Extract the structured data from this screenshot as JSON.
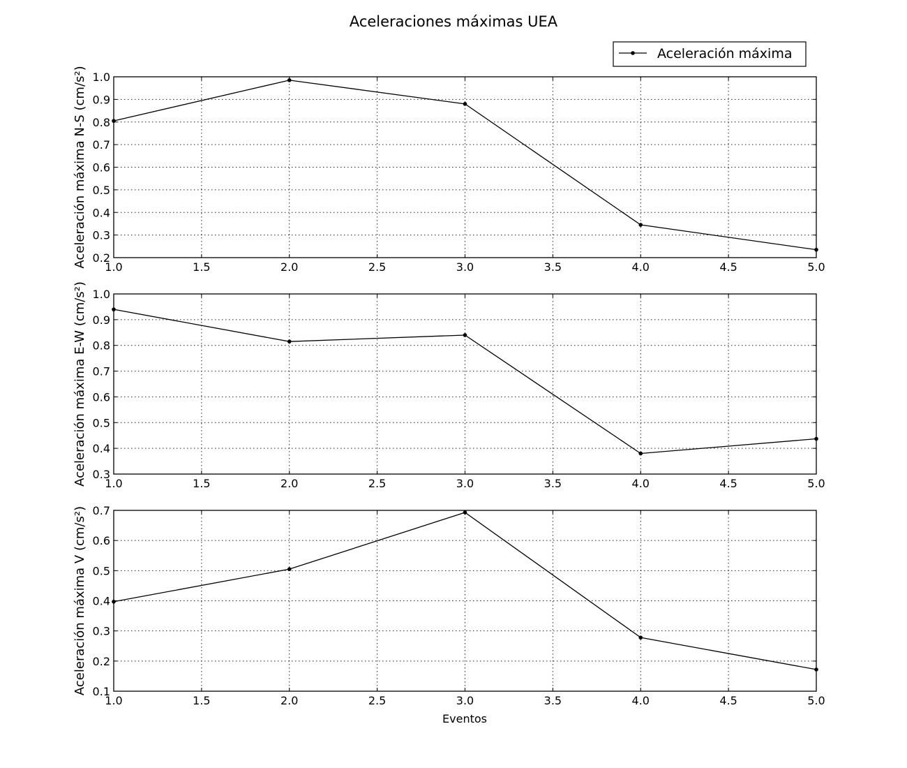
{
  "figure": {
    "title": "Aceleraciones máximas UEA",
    "legend_label": "Aceleración máxima",
    "xlabel": "Eventos"
  },
  "chart_data": [
    {
      "type": "line",
      "title": "Aceleraciones máximas UEA",
      "ylabel": "Aceleración máxima N-S (cm/s²)",
      "xlabel": "",
      "xlim": [
        1.0,
        5.0
      ],
      "ylim": [
        0.2,
        1.0
      ],
      "xticks": [
        "1.0",
        "1.5",
        "2.0",
        "2.5",
        "3.0",
        "3.5",
        "4.0",
        "4.5",
        "5.0"
      ],
      "yticks": [
        "0.2",
        "0.3",
        "0.4",
        "0.5",
        "0.6",
        "0.7",
        "0.8",
        "0.9",
        "1.0"
      ],
      "grid": true,
      "legend": "top-right",
      "series": [
        {
          "name": "Aceleración máxima",
          "x": [
            1,
            2,
            3,
            4,
            5
          ],
          "y": [
            0.805,
            0.985,
            0.88,
            0.345,
            0.235
          ]
        }
      ]
    },
    {
      "type": "line",
      "ylabel": "Aceleración máxima E-W (cm/s²)",
      "xlabel": "",
      "xlim": [
        1.0,
        5.0
      ],
      "ylim": [
        0.3,
        1.0
      ],
      "xticks": [
        "1.0",
        "1.5",
        "2.0",
        "2.5",
        "3.0",
        "3.5",
        "4.0",
        "4.5",
        "5.0"
      ],
      "yticks": [
        "0.3",
        "0.4",
        "0.5",
        "0.6",
        "0.7",
        "0.8",
        "0.9",
        "1.0"
      ],
      "grid": true,
      "series": [
        {
          "name": "Aceleración máxima",
          "x": [
            1,
            2,
            3,
            4,
            5
          ],
          "y": [
            0.94,
            0.815,
            0.84,
            0.38,
            0.437
          ]
        }
      ]
    },
    {
      "type": "line",
      "ylabel": "Aceleración máxima V (cm/s²)",
      "xlabel": "Eventos",
      "xlim": [
        1.0,
        5.0
      ],
      "ylim": [
        0.1,
        0.7
      ],
      "xticks": [
        "1.0",
        "1.5",
        "2.0",
        "2.5",
        "3.0",
        "3.5",
        "4.0",
        "4.5",
        "5.0"
      ],
      "yticks": [
        "0.1",
        "0.2",
        "0.3",
        "0.4",
        "0.5",
        "0.6",
        "0.7"
      ],
      "grid": true,
      "series": [
        {
          "name": "Aceleración máxima",
          "x": [
            1,
            2,
            3,
            4,
            5
          ],
          "y": [
            0.397,
            0.505,
            0.693,
            0.278,
            0.172
          ]
        }
      ]
    }
  ]
}
